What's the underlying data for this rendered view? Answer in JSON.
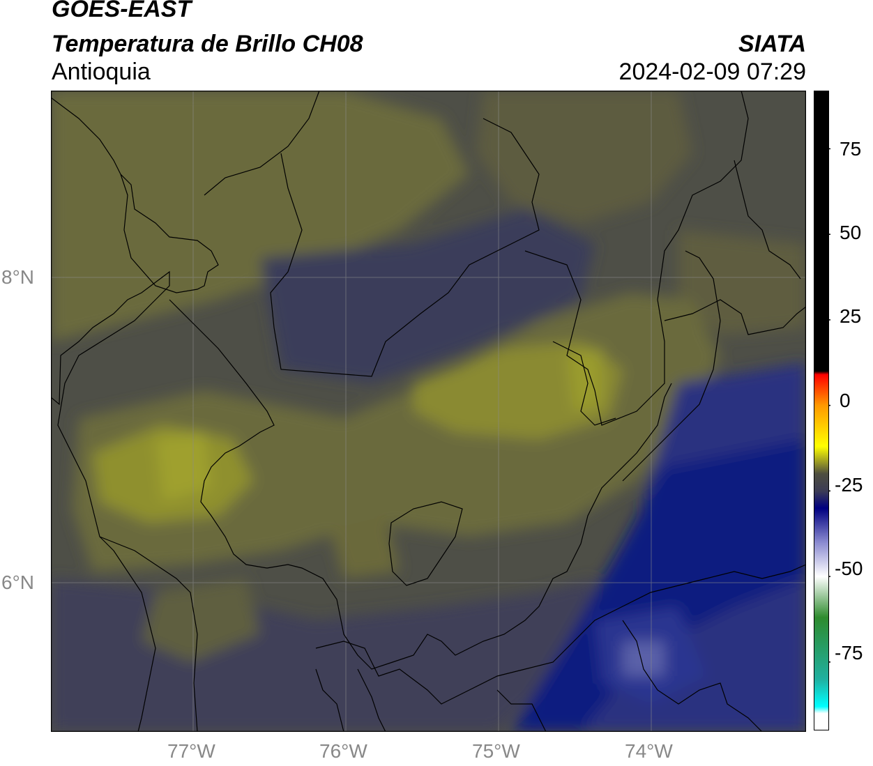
{
  "header": {
    "satellite": "GOES-EAST",
    "product": "Temperatura de Brillo CH08",
    "region": "Antioquia",
    "organization": "SIATA",
    "datetime": "2024-02-09 07:29"
  },
  "map": {
    "lat_labels": [
      "8°N",
      "6°N"
    ],
    "lon_labels": [
      "77°W",
      "76°W",
      "75°W",
      "74°W"
    ],
    "colors": {
      "yellow_warm": "#9a9b2e",
      "olive": "#6b6a3c",
      "grey_olive": "#4e4f47",
      "grey_blue": "#3b3d5a",
      "blue": "#2c3380",
      "deep_blue": "#0a1a80",
      "gridline": "#8a8a8a",
      "borders": "#000000"
    }
  },
  "colorbar": {
    "tick_labels": [
      "75",
      "50",
      "25",
      "0",
      "-25",
      "-50",
      "-75"
    ],
    "tick_values": [
      75,
      50,
      25,
      0,
      -25,
      -50,
      -75
    ],
    "range": [
      -95,
      92
    ],
    "stops": [
      {
        "value": 92,
        "color": "#000000"
      },
      {
        "value": 10,
        "color": "#000000"
      },
      {
        "value": 9,
        "color": "#ff0000"
      },
      {
        "value": 0,
        "color": "#ff9900"
      },
      {
        "value": -12,
        "color": "#ffff00"
      },
      {
        "value": -20,
        "color": "#4f4f3f"
      },
      {
        "value": -25,
        "color": "#3c3c55"
      },
      {
        "value": -30,
        "color": "#000080"
      },
      {
        "value": -40,
        "color": "#8a8ad0"
      },
      {
        "value": -50,
        "color": "#ffffff"
      },
      {
        "value": -62,
        "color": "#2e8b2e"
      },
      {
        "value": -80,
        "color": "#20b0a0"
      },
      {
        "value": -88,
        "color": "#00ffff"
      },
      {
        "value": -90,
        "color": "#ffffff"
      },
      {
        "value": -95,
        "color": "#ffffff"
      }
    ]
  }
}
